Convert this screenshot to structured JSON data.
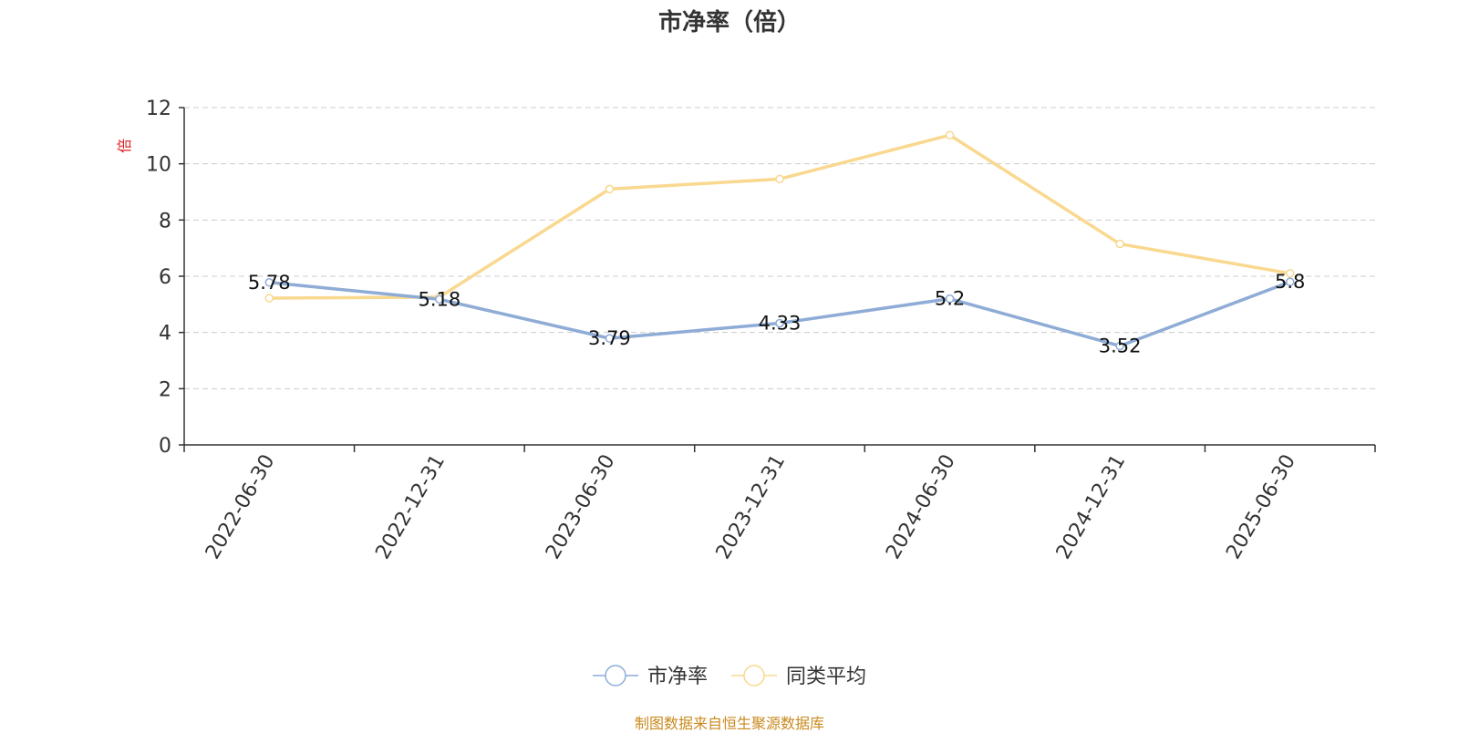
{
  "colors": {
    "series_0": "#8eacd6",
    "series_1": "#f9d88f",
    "axis": "#333333",
    "grid": "#cccccc",
    "unit": "#e02020",
    "source": "#c98a1e"
  },
  "chart_data": {
    "type": "line",
    "title": "市净率（倍）",
    "ylabel": "倍",
    "xlabel": "",
    "categories": [
      "2022-06-30",
      "2022-12-31",
      "2023-06-30",
      "2023-12-31",
      "2024-06-30",
      "2024-12-31",
      "2025-06-30"
    ],
    "series": [
      {
        "name": "市净率",
        "values": [
          5.78,
          5.18,
          3.79,
          4.33,
          5.2,
          3.52,
          5.8
        ],
        "labels": [
          "5.78",
          "5.18",
          "3.79",
          "4.33",
          "5.2",
          "3.52",
          "5.8"
        ],
        "show_labels": true
      },
      {
        "name": "同类平均",
        "values": [
          5.22,
          5.26,
          9.1,
          9.46,
          11.02,
          7.15,
          6.1
        ],
        "show_labels": false
      }
    ],
    "ylim": [
      0,
      12
    ],
    "yticks": [
      0,
      2,
      4,
      6,
      8,
      10,
      12
    ],
    "grid": true,
    "legend": "bottom-center"
  },
  "source_text": "制图数据来自恒生聚源数据库"
}
